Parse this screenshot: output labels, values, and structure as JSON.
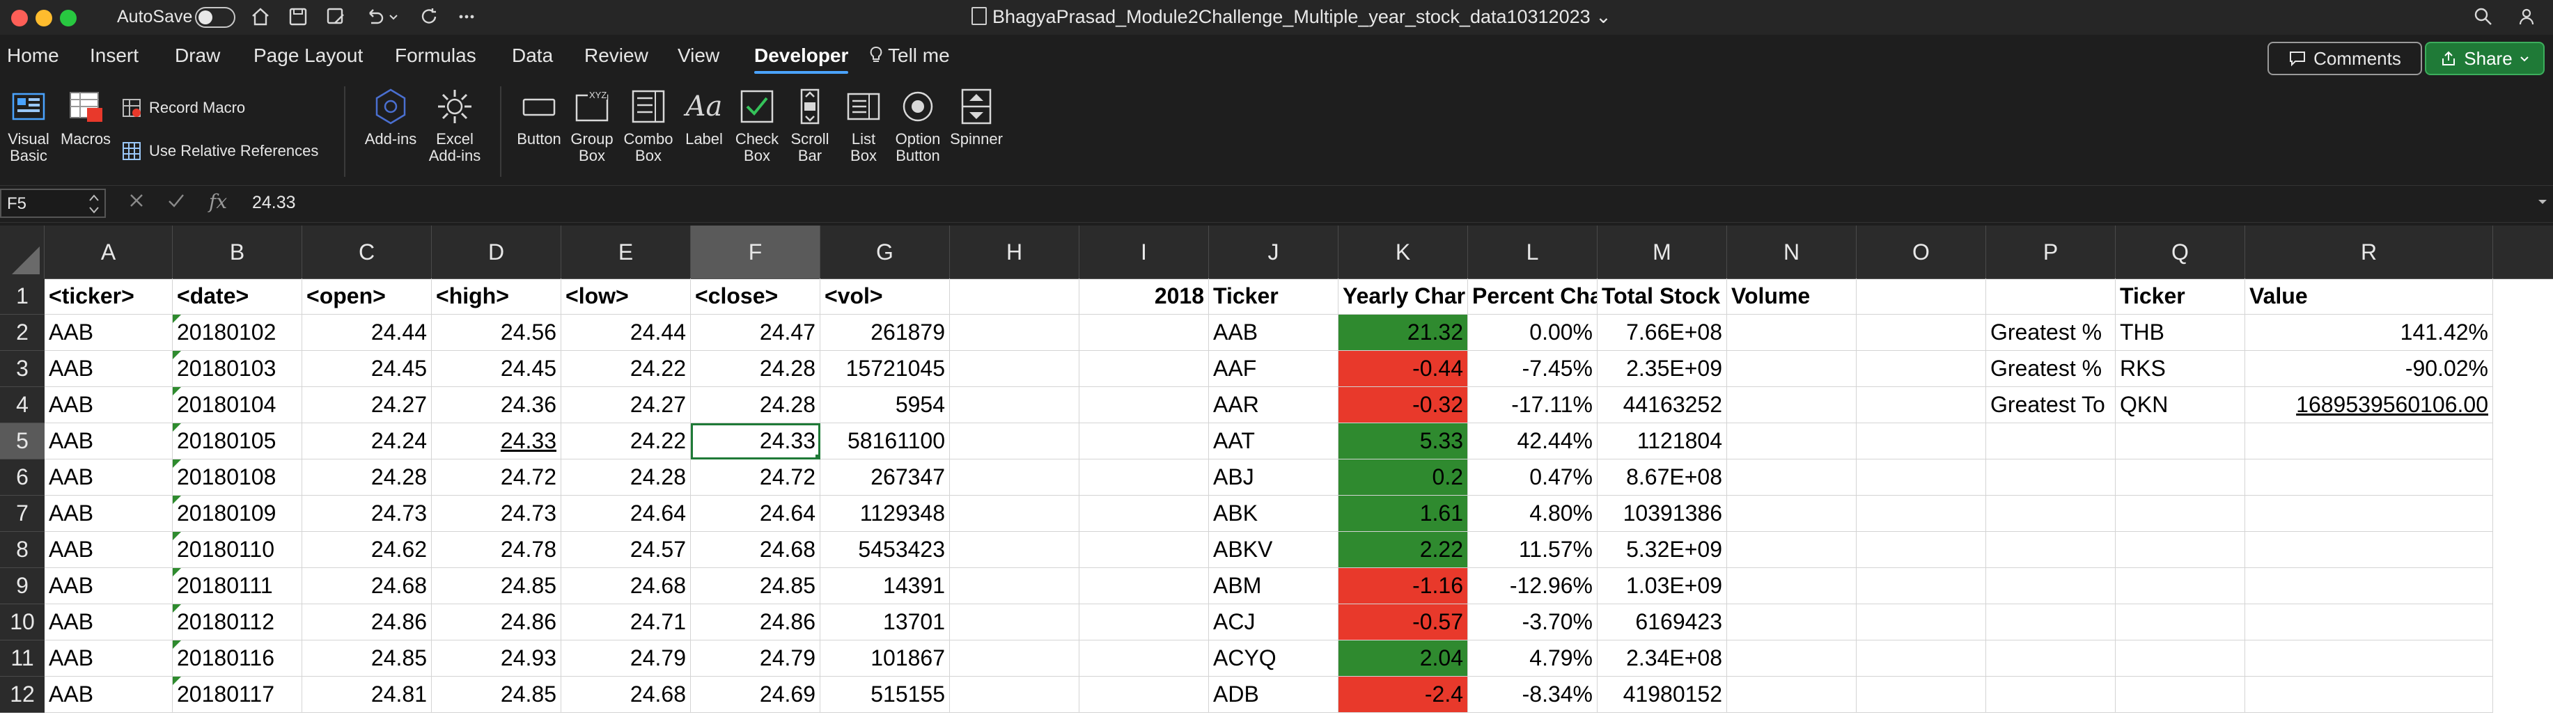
{
  "titlebar": {
    "autosave_label": "AutoSave",
    "doc_title": "BhagyaPrasad_Module2Challenge_Multiple_year_stock_data10312023",
    "doc_title_chevron": "⌄"
  },
  "tabs": [
    "Home",
    "Insert",
    "Draw",
    "Page Layout",
    "Formulas",
    "Data",
    "Review",
    "View",
    "Developer",
    "Tell me"
  ],
  "active_tab": "Developer",
  "buttons": {
    "comments": "Comments",
    "share": "Share"
  },
  "ribbon": {
    "visual_basic": [
      "Visual",
      "Basic"
    ],
    "macros": "Macros",
    "record_macro": "Record Macro",
    "use_relative": "Use Relative References",
    "add_ins": "Add-ins",
    "excel_add_ins": [
      "Excel",
      "Add-ins"
    ],
    "button": "Button",
    "group_box": [
      "Group",
      "Box"
    ],
    "combo_box": [
      "Combo",
      "Box"
    ],
    "label": "Label",
    "check_box": [
      "Check",
      "Box"
    ],
    "scroll_bar": [
      "Scroll",
      "Bar"
    ],
    "list_box": [
      "List",
      "Box"
    ],
    "option_button": [
      "Option",
      "Button"
    ],
    "spinner": "Spinner"
  },
  "formula_bar": {
    "name_box": "F5",
    "fx": "fx",
    "value": "24.33"
  },
  "columns": [
    "A",
    "B",
    "C",
    "D",
    "E",
    "F",
    "G",
    "H",
    "I",
    "J",
    "K",
    "L",
    "M",
    "N",
    "O",
    "P",
    "Q",
    "R"
  ],
  "selected_column": "F",
  "selected_row": "5",
  "rows": [
    {
      "n": "1",
      "A": "<ticker>",
      "B": "<date>",
      "C": "<open>",
      "D": "<high>",
      "E": "<low>",
      "F": "<close>",
      "G": "<vol>",
      "I": "2018",
      "J": "Ticker",
      "K": "Yearly Char",
      "L": "Percent Cha",
      "M": "Total Stock",
      "N": "Volume",
      "Q": "Ticker",
      "R": "Value"
    },
    {
      "n": "2",
      "A": "AAB",
      "B": "20180102",
      "C": "24.44",
      "D": "24.56",
      "E": "24.44",
      "F": "24.47",
      "G": "261879",
      "J": "AAB",
      "K": "21.32",
      "L": "0.00%",
      "M": "7.66E+08",
      "P": "Greatest %",
      "Q": "THB",
      "R": "141.42%"
    },
    {
      "n": "3",
      "A": "AAB",
      "B": "20180103",
      "C": "24.45",
      "D": "24.45",
      "E": "24.22",
      "F": "24.28",
      "G": "15721045",
      "J": "AAF",
      "K": "-0.44",
      "L": "-7.45%",
      "M": "2.35E+09",
      "P": "Greatest %",
      "Q": "RKS",
      "R": "-90.02%"
    },
    {
      "n": "4",
      "A": "AAB",
      "B": "20180104",
      "C": "24.27",
      "D": "24.36",
      "E": "24.27",
      "F": "24.28",
      "G": "5954",
      "J": "AAR",
      "K": "-0.32",
      "L": "-17.11%",
      "M": "44163252",
      "P": "Greatest To",
      "Q": "QKN",
      "R": "1689539560106.00"
    },
    {
      "n": "5",
      "A": "AAB",
      "B": "20180105",
      "C": "24.24",
      "D": "24.33",
      "E": "24.22",
      "F": "24.33",
      "G": "58161100",
      "J": "AAT",
      "K": "5.33",
      "L": "42.44%",
      "M": "1121804"
    },
    {
      "n": "6",
      "A": "AAB",
      "B": "20180108",
      "C": "24.28",
      "D": "24.72",
      "E": "24.28",
      "F": "24.72",
      "G": "267347",
      "J": "ABJ",
      "K": "0.2",
      "L": "0.47%",
      "M": "8.67E+08"
    },
    {
      "n": "7",
      "A": "AAB",
      "B": "20180109",
      "C": "24.73",
      "D": "24.73",
      "E": "24.64",
      "F": "24.64",
      "G": "1129348",
      "J": "ABK",
      "K": "1.61",
      "L": "4.80%",
      "M": "10391386"
    },
    {
      "n": "8",
      "A": "AAB",
      "B": "20180110",
      "C": "24.62",
      "D": "24.78",
      "E": "24.57",
      "F": "24.68",
      "G": "5453423",
      "J": "ABKV",
      "K": "2.22",
      "L": "11.57%",
      "M": "5.32E+09"
    },
    {
      "n": "9",
      "A": "AAB",
      "B": "20180111",
      "C": "24.68",
      "D": "24.85",
      "E": "24.68",
      "F": "24.85",
      "G": "14391",
      "J": "ABM",
      "K": "-1.16",
      "L": "-12.96%",
      "M": "1.03E+09"
    },
    {
      "n": "10",
      "A": "AAB",
      "B": "20180112",
      "C": "24.86",
      "D": "24.86",
      "E": "24.71",
      "F": "24.86",
      "G": "13701",
      "J": "ACJ",
      "K": "-0.57",
      "L": "-3.70%",
      "M": "6169423"
    },
    {
      "n": "11",
      "A": "AAB",
      "B": "20180116",
      "C": "24.85",
      "D": "24.93",
      "E": "24.79",
      "F": "24.79",
      "G": "101867",
      "J": "ACYQ",
      "K": "2.04",
      "L": "4.79%",
      "M": "2.34E+08"
    },
    {
      "n": "12",
      "A": "AAB",
      "B": "20180117",
      "C": "24.81",
      "D": "24.85",
      "E": "24.68",
      "F": "24.69",
      "G": "515155",
      "J": "ADB",
      "K": "-2.4",
      "L": "-8.34%",
      "M": "41980152"
    }
  ],
  "colors": {
    "accent": "#4aa3ff",
    "positive": "#2f8a2f",
    "negative": "#e8392b",
    "share": "#1f7a37"
  }
}
